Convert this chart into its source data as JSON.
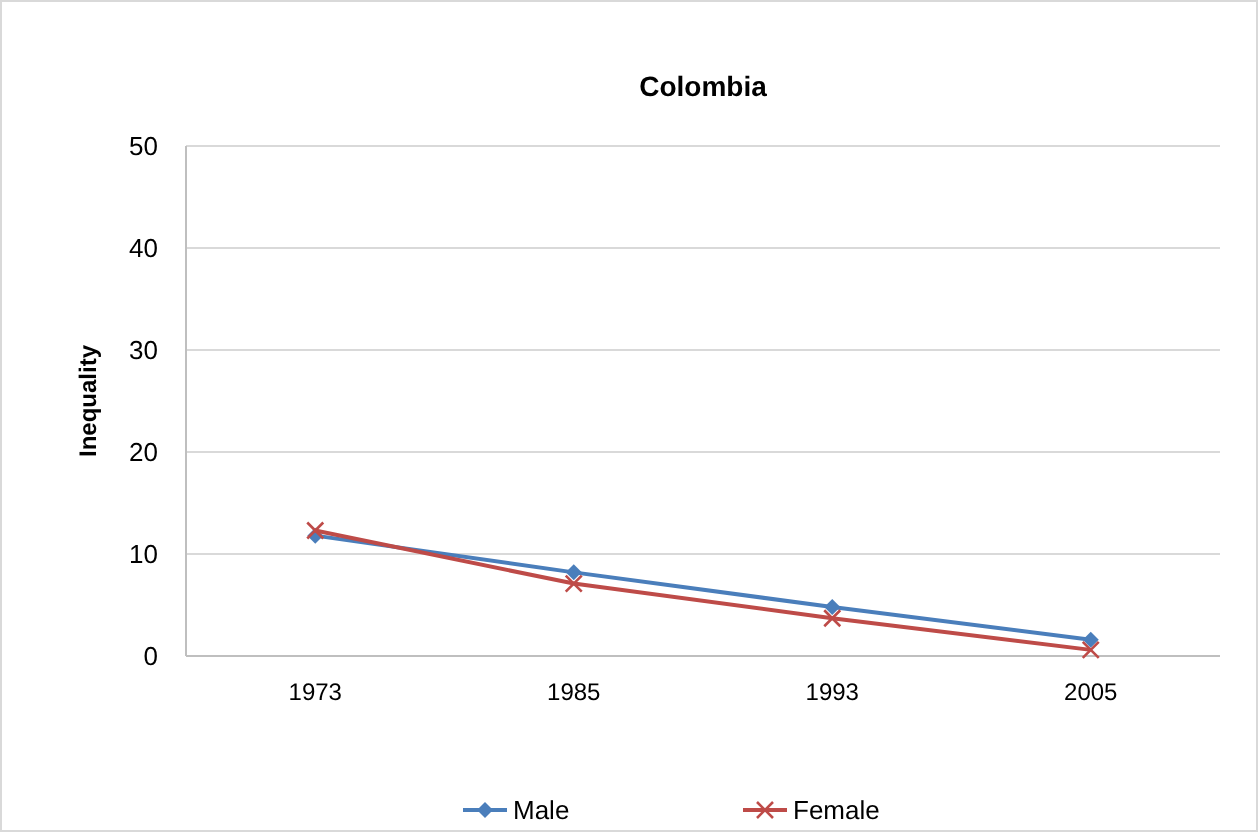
{
  "chart_data": {
    "type": "line",
    "title": "Colombia",
    "ylabel": "Inequality",
    "categories": [
      "1973",
      "1985",
      "1993",
      "2005"
    ],
    "series": [
      {
        "name": "Male",
        "color": "#4a7ebb",
        "marker": "diamond",
        "values": [
          11.8,
          8.2,
          4.8,
          1.6
        ]
      },
      {
        "name": "Female",
        "color": "#be4b48",
        "marker": "cross",
        "values": [
          12.3,
          7.1,
          3.7,
          0.6
        ]
      }
    ],
    "ylim": [
      0,
      50
    ],
    "yticks": [
      0,
      10,
      20,
      30,
      40,
      50
    ],
    "grid": "y",
    "legend": "bottom"
  }
}
